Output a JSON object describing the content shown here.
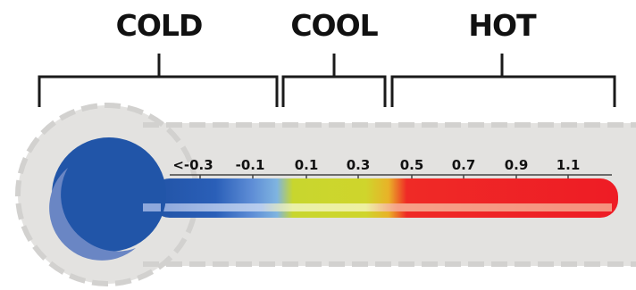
{
  "ranges": [
    {
      "label": "COLD"
    },
    {
      "label": "COOL"
    },
    {
      "label": "HOT"
    }
  ],
  "scale_labels": [
    "<-0.3",
    "-0.1",
    "0.1",
    "0.3",
    "0.5",
    "0.7",
    "0.9",
    "1.1"
  ],
  "colors": {
    "cold": "#2357b0",
    "cold_light": "#5b8bd4",
    "cool": "#c9d22a",
    "hot": "#ee1c25",
    "backdrop": "#e3e2e0",
    "backdrop_edge": "#d4d3d1",
    "bulb": "#2155a8",
    "bulb_highlight": "#6a86c4"
  }
}
